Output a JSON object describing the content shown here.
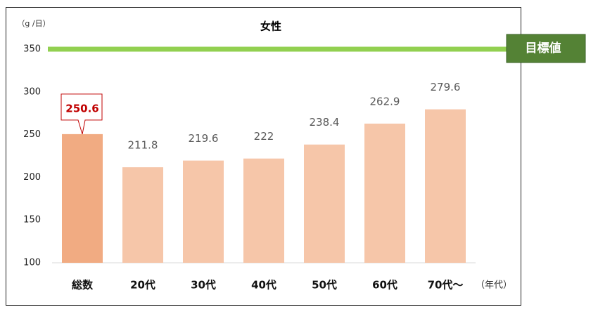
{
  "chart_data": {
    "type": "bar",
    "title": "女性",
    "y_unit": "（g /日）",
    "x_unit": "（年代）",
    "categories": [
      "総数",
      "20代",
      "30代",
      "40代",
      "50代",
      "60代",
      "70代～"
    ],
    "values": [
      250.6,
      211.8,
      219.6,
      222,
      238.4,
      262.9,
      279.6
    ],
    "colors": [
      "#f1ab82",
      "#f6c6a9",
      "#f6c6a9",
      "#f6c6a9",
      "#f6c6a9",
      "#f6c6a9",
      "#f6c6a9"
    ],
    "highlight_label_color": "#c00000",
    "ylim": [
      100,
      350
    ],
    "yticks": [
      100,
      150,
      200,
      250,
      300,
      350
    ],
    "target_line": {
      "value": 350,
      "label": "目標値",
      "color": "#92d050",
      "label_background": "#548235"
    }
  }
}
